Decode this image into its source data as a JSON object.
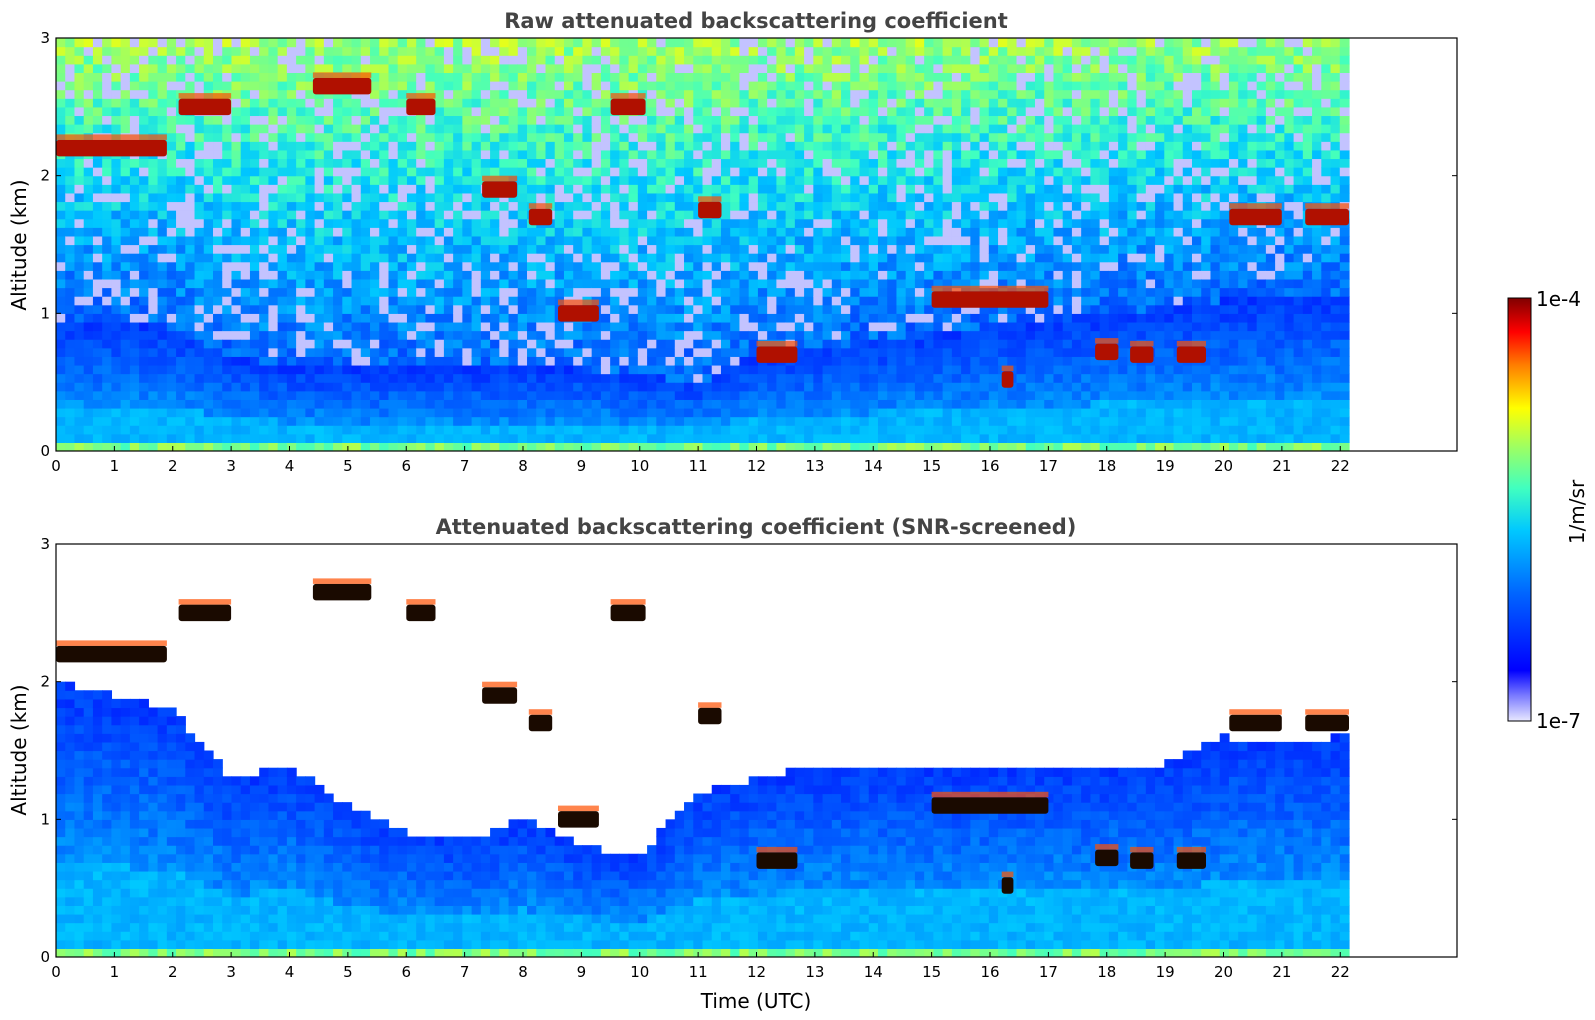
{
  "chart_data": [
    {
      "type": "heatmap",
      "title": "Raw attenuated backscattering coefficient",
      "xlabel": "",
      "ylabel": "Altitude (km)",
      "xlim": [
        0,
        24
      ],
      "ylim": [
        0,
        3
      ],
      "data_extent_x": 22.15,
      "xticks": [
        "0",
        "1",
        "2",
        "3",
        "4",
        "5",
        "6",
        "7",
        "8",
        "9",
        "10",
        "11",
        "12",
        "13",
        "14",
        "15",
        "16",
        "17",
        "18",
        "19",
        "20",
        "21",
        "22"
      ],
      "yticks": [
        "0",
        "1",
        "2",
        "3"
      ],
      "colormap": "jet",
      "grid": false,
      "features": {
        "background": "noisy (sparse) above ~1 km",
        "boundary_layer_top_km": [
          [
            0,
            0.95
          ],
          [
            1,
            0.95
          ],
          [
            2,
            0.9
          ],
          [
            3,
            0.7
          ],
          [
            4,
            0.6
          ],
          [
            5,
            0.6
          ],
          [
            6,
            0.6
          ],
          [
            7,
            0.6
          ],
          [
            8,
            0.6
          ],
          [
            9,
            0.6
          ],
          [
            10,
            0.55
          ],
          [
            11,
            0.5
          ],
          [
            12,
            0.7
          ],
          [
            13,
            0.75
          ],
          [
            14,
            0.8
          ],
          [
            15,
            0.85
          ],
          [
            16,
            0.9
          ],
          [
            17,
            0.95
          ],
          [
            18,
            1.0
          ],
          [
            19,
            1.05
          ],
          [
            20,
            1.1
          ],
          [
            21,
            1.1
          ],
          [
            22,
            1.15
          ]
        ],
        "cloud_segments": [
          {
            "x0": 0.0,
            "x1": 1.9,
            "y": 2.2
          },
          {
            "x0": 2.1,
            "x1": 3.0,
            "y": 2.5
          },
          {
            "x0": 4.4,
            "x1": 5.4,
            "y": 2.65
          },
          {
            "x0": 6.0,
            "x1": 6.5,
            "y": 2.5
          },
          {
            "x0": 7.3,
            "x1": 7.9,
            "y": 1.9
          },
          {
            "x0": 8.1,
            "x1": 8.5,
            "y": 1.7
          },
          {
            "x0": 8.6,
            "x1": 9.3,
            "y": 1.0
          },
          {
            "x0": 9.5,
            "x1": 10.1,
            "y": 2.5
          },
          {
            "x0": 11.0,
            "x1": 11.4,
            "y": 1.75
          },
          {
            "x0": 12.0,
            "x1": 12.7,
            "y": 0.7
          },
          {
            "x0": 15.0,
            "x1": 17.0,
            "y": 1.1
          },
          {
            "x0": 16.2,
            "x1": 16.4,
            "y": 0.52
          },
          {
            "x0": 17.8,
            "x1": 18.2,
            "y": 0.72
          },
          {
            "x0": 18.4,
            "x1": 18.8,
            "y": 0.7
          },
          {
            "x0": 19.2,
            "x1": 19.7,
            "y": 0.7
          },
          {
            "x0": 20.1,
            "x1": 21.0,
            "y": 1.7
          },
          {
            "x0": 21.4,
            "x1": 22.15,
            "y": 1.7
          }
        ]
      }
    },
    {
      "type": "heatmap",
      "title": "Attenuated backscattering coefficient (SNR-screened)",
      "xlabel": "Time (UTC)",
      "ylabel": "Altitude (km)",
      "xlim": [
        0,
        24
      ],
      "ylim": [
        0,
        3
      ],
      "data_extent_x": 22.15,
      "xticks": [
        "0",
        "1",
        "2",
        "3",
        "4",
        "5",
        "6",
        "7",
        "8",
        "9",
        "10",
        "11",
        "12",
        "13",
        "14",
        "15",
        "16",
        "17",
        "18",
        "19",
        "20",
        "21",
        "22"
      ],
      "yticks": [
        "0",
        "1",
        "2",
        "3"
      ],
      "colormap": "jet",
      "grid": false,
      "features": {
        "background": "white (screened) above aerosol layer",
        "boundary_layer_top_km": [
          [
            0,
            2.0
          ],
          [
            1,
            1.9
          ],
          [
            2,
            1.8
          ],
          [
            3,
            1.3
          ],
          [
            4,
            1.4
          ],
          [
            5,
            1.1
          ],
          [
            6,
            0.9
          ],
          [
            7,
            0.85
          ],
          [
            8,
            1.0
          ],
          [
            9,
            0.8
          ],
          [
            10,
            0.75
          ],
          [
            11,
            1.2
          ],
          [
            12,
            1.3
          ],
          [
            13,
            1.4
          ],
          [
            14,
            1.4
          ],
          [
            15,
            1.35
          ],
          [
            16,
            1.35
          ],
          [
            17,
            1.4
          ],
          [
            18,
            1.4
          ],
          [
            19,
            1.4
          ],
          [
            20,
            1.6
          ],
          [
            21,
            1.55
          ],
          [
            22,
            1.6
          ]
        ]
      }
    }
  ],
  "colorbar": {
    "max_label": "1e-4",
    "min_label": "1e-7",
    "units": "1/m/sr"
  }
}
